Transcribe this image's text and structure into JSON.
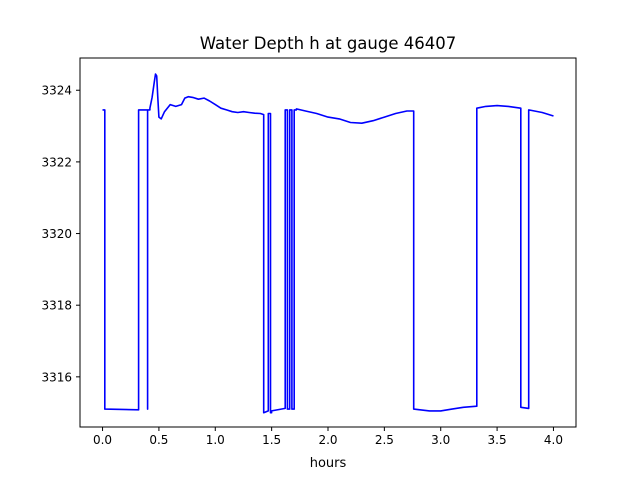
{
  "chart_data": {
    "type": "line",
    "title": "Water Depth h at gauge 46407",
    "xlabel": "hours",
    "ylabel": "",
    "xlim": [
      -0.2,
      4.2
    ],
    "ylim": [
      3314.6,
      3324.9
    ],
    "xticks": [
      0.0,
      0.5,
      1.0,
      1.5,
      2.0,
      2.5,
      3.0,
      3.5,
      4.0
    ],
    "xtick_labels": [
      "0.0",
      "0.5",
      "1.0",
      "1.5",
      "2.0",
      "2.5",
      "3.0",
      "3.5",
      "4.0"
    ],
    "yticks": [
      3316,
      3318,
      3320,
      3322,
      3324
    ],
    "ytick_labels": [
      "3316",
      "3318",
      "3320",
      "3322",
      "3324"
    ],
    "grid": false,
    "legend": "none",
    "series": [
      {
        "color": "#0000ff",
        "x": [
          0.0,
          0.02,
          0.02,
          0.32,
          0.32,
          0.4,
          0.4,
          0.4,
          0.4,
          0.42,
          0.42,
          0.44,
          0.46,
          0.47,
          0.48,
          0.49,
          0.5,
          0.52,
          0.55,
          0.6,
          0.65,
          0.7,
          0.73,
          0.76,
          0.8,
          0.85,
          0.9,
          0.95,
          1.0,
          1.05,
          1.1,
          1.15,
          1.2,
          1.25,
          1.3,
          1.35,
          1.4,
          1.43,
          1.43,
          1.47,
          1.47,
          1.49,
          1.49,
          1.5,
          1.5,
          1.62,
          1.62,
          1.64,
          1.64,
          1.66,
          1.66,
          1.68,
          1.68,
          1.7,
          1.7,
          1.72,
          1.72,
          1.8,
          1.9,
          2.0,
          2.1,
          2.2,
          2.3,
          2.4,
          2.5,
          2.6,
          2.7,
          2.76,
          2.76,
          2.9,
          3.0,
          3.1,
          3.2,
          3.32,
          3.32,
          3.4,
          3.5,
          3.6,
          3.71,
          3.71,
          3.78,
          3.78,
          3.9,
          4.0
        ],
        "y": [
          3323.45,
          3323.45,
          3315.1,
          3315.08,
          3323.45,
          3323.45,
          3315.1,
          3315.1,
          3323.45,
          3323.45,
          3323.5,
          3323.8,
          3324.25,
          3324.45,
          3324.4,
          3323.8,
          3323.25,
          3323.2,
          3323.4,
          3323.6,
          3323.55,
          3323.6,
          3323.78,
          3323.82,
          3323.8,
          3323.75,
          3323.78,
          3323.7,
          3323.6,
          3323.5,
          3323.45,
          3323.4,
          3323.38,
          3323.4,
          3323.38,
          3323.36,
          3323.35,
          3323.32,
          3315.0,
          3315.05,
          3323.35,
          3323.35,
          3315.0,
          3315.0,
          3315.05,
          3315.12,
          3323.45,
          3323.45,
          3315.1,
          3315.1,
          3323.45,
          3323.45,
          3315.1,
          3315.1,
          3323.45,
          3323.45,
          3323.48,
          3323.42,
          3323.35,
          3323.25,
          3323.2,
          3323.1,
          3323.08,
          3323.15,
          3323.25,
          3323.35,
          3323.42,
          3323.42,
          3315.1,
          3315.05,
          3315.05,
          3315.1,
          3315.15,
          3315.18,
          3323.5,
          3323.55,
          3323.57,
          3323.55,
          3323.5,
          3315.15,
          3315.12,
          3323.45,
          3323.38,
          3323.28
        ]
      }
    ]
  }
}
